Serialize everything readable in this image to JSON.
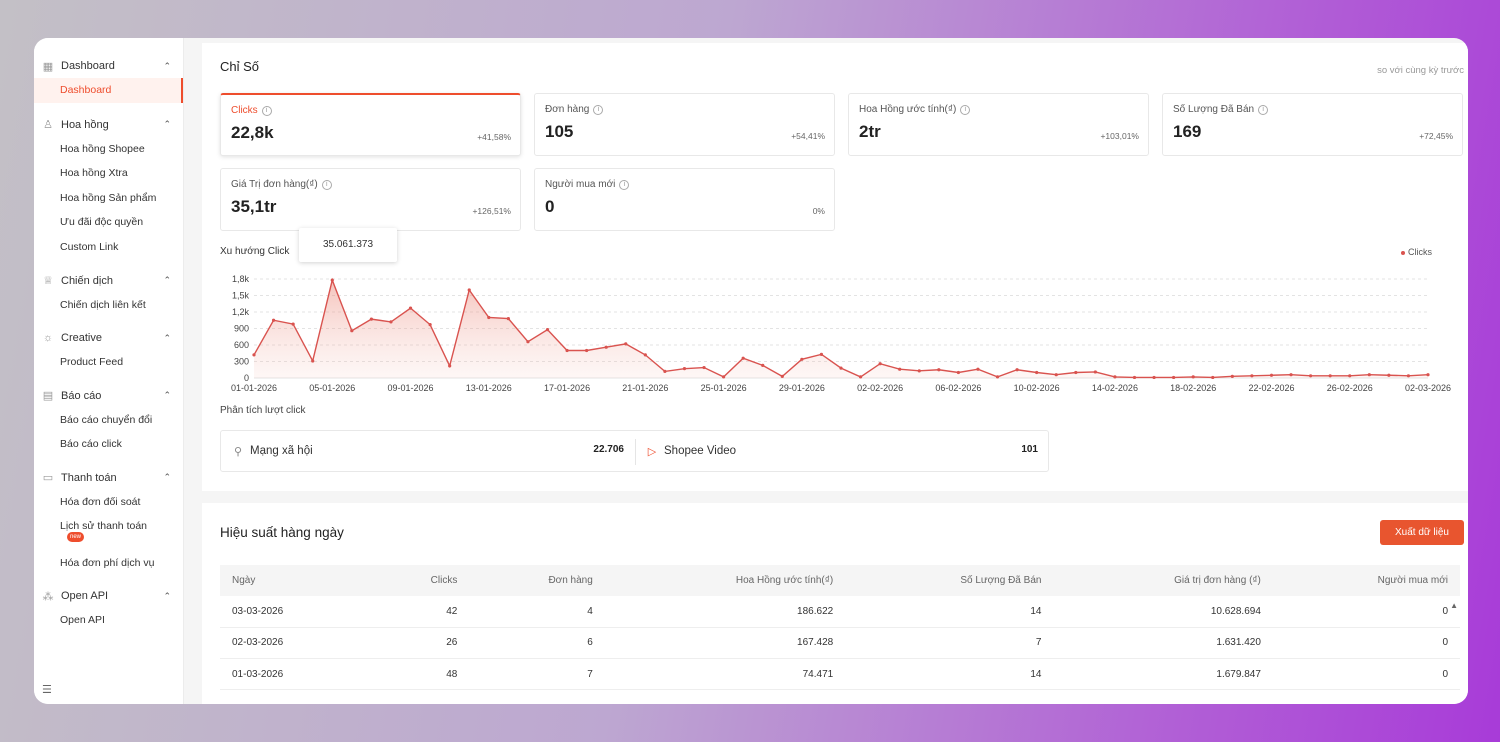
{
  "sidebar": {
    "groups": [
      {
        "label": "Dashboard",
        "icon": "grid-icon",
        "items": [
          "Dashboard"
        ]
      },
      {
        "label": "Hoa hồng",
        "icon": "user-icon",
        "items": [
          "Hoa hồng Shopee",
          "Hoa hồng Xtra",
          "Hoa hồng Sản phẩm",
          "Ưu đãi độc quyền",
          "Custom Link"
        ]
      },
      {
        "label": "Chiến dịch",
        "icon": "trophy-icon",
        "items": [
          "Chiến dịch liên kết"
        ]
      },
      {
        "label": "Creative",
        "icon": "bulb-icon",
        "items": [
          "Product Feed"
        ]
      },
      {
        "label": "Báo cáo",
        "icon": "calendar-icon",
        "items": [
          "Báo cáo chuyển đổi",
          "Báo cáo click"
        ]
      },
      {
        "label": "Thanh toán",
        "icon": "wallet-icon",
        "items": [
          "Hóa đơn đối soát",
          "Lịch sử thanh toán",
          "Hóa đơn phí dịch vụ"
        ]
      },
      {
        "label": "Open API",
        "icon": "api-icon",
        "items": [
          "Open API"
        ]
      }
    ],
    "new_badge": "new"
  },
  "metrics": {
    "title": "Chỉ Số",
    "compare_label": "so với cùng kỳ trước",
    "cards": [
      {
        "label": "Clicks",
        "value": "22,8k",
        "change": "+41,58%"
      },
      {
        "label": "Đơn hàng",
        "value": "105",
        "change": "+54,41%"
      },
      {
        "label": "Hoa Hồng ước tính(₫)",
        "value": "2tr",
        "change": "+103,01%"
      },
      {
        "label": "Số Lượng Đã Bán",
        "value": "169",
        "change": "+72,45%"
      },
      {
        "label": "Giá Trị đơn hàng(₫)",
        "value": "35,1tr",
        "change": "+126,51%"
      },
      {
        "label": "Người mua mới",
        "value": "0",
        "change": "0%"
      }
    ],
    "tooltip": "35.061.373"
  },
  "trend": {
    "title": "Xu hướng Click",
    "legend": "Clicks"
  },
  "chart_data": {
    "type": "area",
    "series": [
      {
        "name": "Clicks",
        "values": [
          420,
          1050,
          980,
          310,
          1780,
          860,
          1070,
          1020,
          1270,
          970,
          220,
          1600,
          1100,
          1080,
          660,
          880,
          500,
          500,
          560,
          620,
          420,
          120,
          170,
          190,
          20,
          360,
          230,
          30,
          340,
          430,
          180,
          20,
          260,
          160,
          130,
          150,
          100,
          160,
          20,
          150,
          100,
          60,
          100,
          110,
          20,
          10,
          10,
          10,
          20,
          10,
          30,
          40,
          50,
          60,
          40,
          40,
          40,
          60,
          50,
          40,
          60
        ]
      }
    ],
    "x_tick_labels": [
      "01-01-2026",
      "05-01-2026",
      "09-01-2026",
      "13-01-2026",
      "17-01-2026",
      "21-01-2026",
      "25-01-2026",
      "29-01-2026",
      "02-02-2026",
      "06-02-2026",
      "10-02-2026",
      "14-02-2026",
      "18-02-2026",
      "22-02-2026",
      "26-02-2026",
      "02-03-2026"
    ],
    "y_tick_labels": [
      "1,8k",
      "1,5k",
      "1,2k",
      "900",
      "600",
      "300",
      "0"
    ],
    "y_ticks": [
      1800,
      1500,
      1200,
      900,
      600,
      300,
      0
    ],
    "ylim": [
      0,
      1800
    ],
    "grid": true,
    "legend": "top-right",
    "color": "#d9534f"
  },
  "analysis": {
    "title": "Phân tích lượt click",
    "items": [
      {
        "label": "Mạng xã hội",
        "value": "22.706",
        "icon": "share-icon"
      },
      {
        "label": "Shopee Video",
        "value": "101",
        "icon": "play-icon"
      }
    ]
  },
  "daily": {
    "title": "Hiệu suất hàng ngày",
    "export_label": "Xuất dữ liệu",
    "columns": [
      "Ngày",
      "Clicks",
      "Đơn hàng",
      "Hoa Hồng ước tính(₫)",
      "Số Lượng Đã Bán",
      "Giá trị đơn hàng (₫)",
      "Người mua mới"
    ],
    "rows": [
      [
        "03-03-2026",
        "42",
        "4",
        "186.622",
        "14",
        "10.628.694",
        "0"
      ],
      [
        "02-03-2026",
        "26",
        "6",
        "167.428",
        "7",
        "1.631.420",
        "0"
      ],
      [
        "01-03-2026",
        "48",
        "7",
        "74.471",
        "14",
        "1.679.847",
        "0"
      ]
    ]
  }
}
